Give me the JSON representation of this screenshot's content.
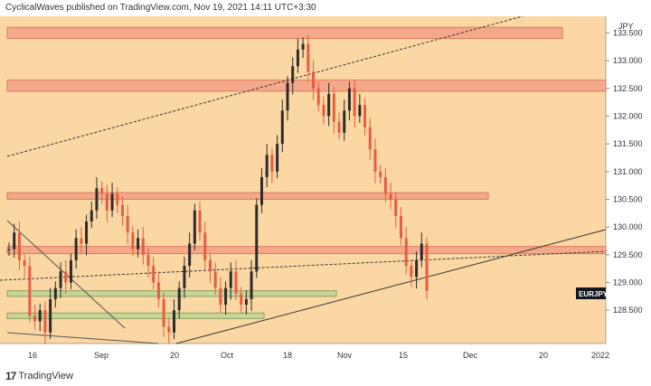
{
  "header": {
    "published_text": "CyclicalWaves published on TradingView.com, Nov 19, 2021 14:11 UTC+3:30"
  },
  "footer": {
    "logo_glyph": "17",
    "brand": "TradingView"
  },
  "colors": {
    "background": "#fbd7a3",
    "zone_red_fill": "#f3a98a",
    "zone_red_stroke": "#e07a5f",
    "zone_green_fill": "#c9d49a",
    "zone_green_stroke": "#8aa05a",
    "candle_up": "#2c2c2c",
    "candle_down": "#e85c41",
    "trendline": "#333333",
    "tag_bg": "#131722"
  },
  "chart_data": {
    "type": "candlestick",
    "symbol_tag": "EURJPY",
    "currency_label": "JPY",
    "ylim": [
      127.9,
      133.8
    ],
    "y_ticks": [
      "133.500",
      "133.000",
      "132.500",
      "132.000",
      "131.500",
      "131.000",
      "130.500",
      "130.000",
      "129.500",
      "129.000",
      "128.500"
    ],
    "x_ticks": [
      "16",
      "Sep",
      "20",
      "Oct",
      "18",
      "Nov",
      "15",
      "Dec",
      "20",
      "2022"
    ],
    "zones": [
      {
        "color": "red",
        "price_low": 133.4,
        "price_high": 133.6
      },
      {
        "color": "red",
        "price_low": 132.45,
        "price_high": 132.65
      },
      {
        "color": "red",
        "price_low": 130.5,
        "price_high": 130.62
      },
      {
        "color": "red",
        "price_low": 129.52,
        "price_high": 129.65
      },
      {
        "color": "green",
        "price_low": 128.75,
        "price_high": 128.85
      },
      {
        "color": "green",
        "price_low": 128.35,
        "price_high": 128.45
      }
    ],
    "price_path": [
      129.6,
      129.9,
      129.4,
      129.3,
      128.4,
      128.3,
      128.5,
      128.1,
      128.7,
      128.9,
      129.2,
      129.0,
      129.4,
      129.8,
      129.7,
      130.1,
      130.3,
      130.7,
      130.6,
      130.3,
      130.6,
      130.4,
      130.2,
      129.9,
      129.6,
      129.8,
      129.5,
      129.3,
      129.0,
      128.7,
      128.2,
      128.1,
      128.5,
      128.9,
      129.3,
      129.7,
      130.3,
      129.9,
      129.4,
      129.2,
      128.9,
      128.6,
      128.9,
      129.2,
      128.8,
      128.6,
      128.7,
      129.2,
      130.4,
      130.9,
      131.3,
      131.0,
      131.5,
      132.1,
      132.6,
      132.9,
      133.2,
      133.3,
      132.8,
      132.5,
      132.2,
      132.0,
      132.4,
      131.9,
      131.7,
      132.1,
      132.5,
      132.0,
      132.2,
      131.8,
      131.4,
      131.0,
      130.9,
      130.6,
      130.5,
      130.2,
      129.8,
      129.3,
      129.1,
      129.4,
      129.7,
      128.85
    ]
  }
}
